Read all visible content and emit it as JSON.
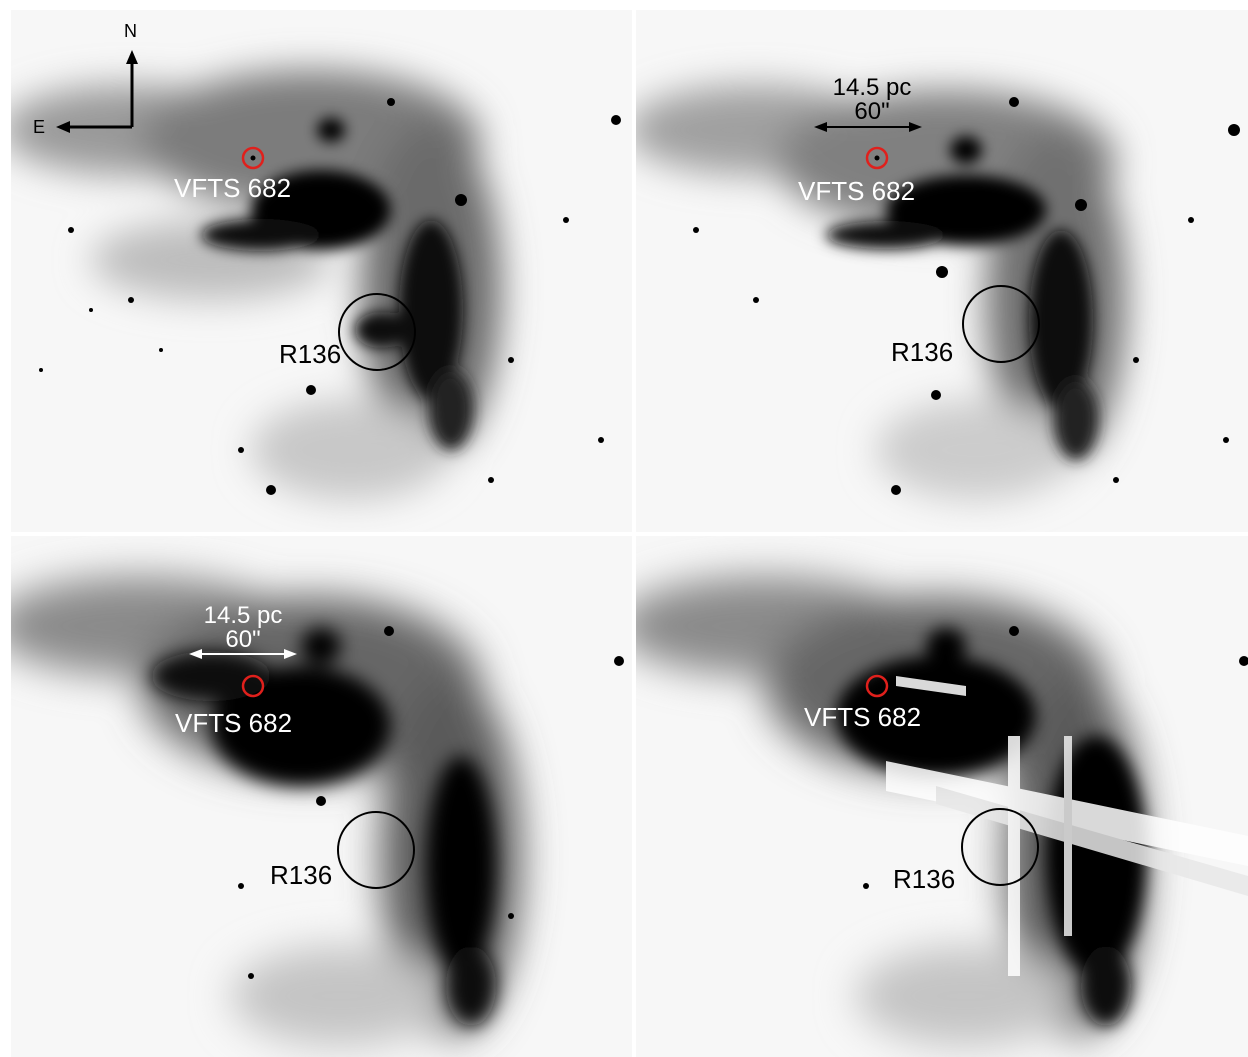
{
  "compass": {
    "north": "N",
    "east": "E"
  },
  "labels": {
    "star": "VFTS 682",
    "cluster": "R136",
    "scale_pc": "14.5 pc",
    "scale_arcsec": "60\""
  },
  "colors": {
    "marker_star": "#e0201c",
    "marker_cluster": "#000000",
    "scale_top_right": "#000000",
    "scale_bottom_left": "#ffffff"
  },
  "panels": [
    {
      "id": "top-left",
      "has_compass": true,
      "has_scale": false
    },
    {
      "id": "top-right",
      "has_compass": false,
      "has_scale": true
    },
    {
      "id": "bottom-left",
      "has_compass": false,
      "has_scale": true
    },
    {
      "id": "bottom-right",
      "has_compass": false,
      "has_scale": false
    }
  ]
}
